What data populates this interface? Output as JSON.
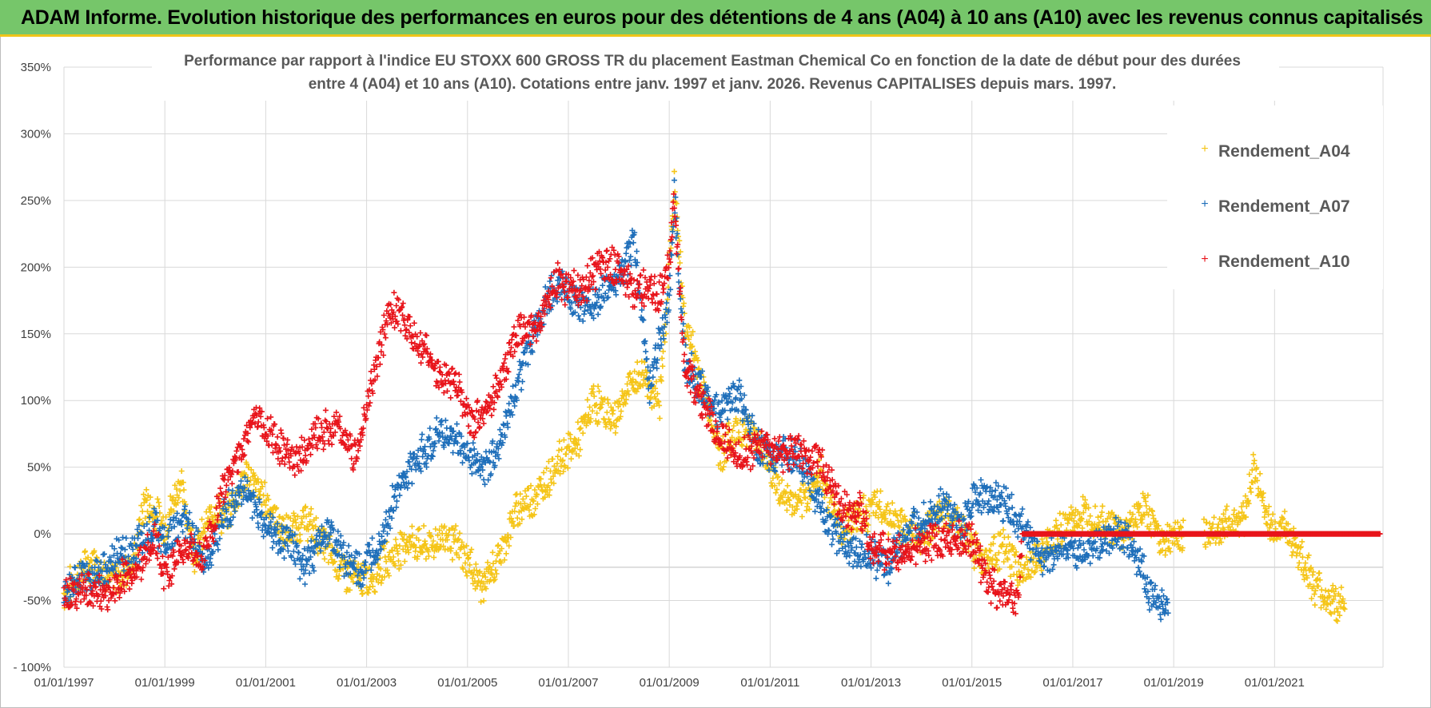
{
  "header": {
    "title": "ADAM Informe. Evolution historique des performances en euros pour des détentions de 4 ans (A04) à 10 ans (A10) avec les revenus connus capitalisés"
  },
  "colors": {
    "header_bg": "#76c66a",
    "header_border": "#f0c419",
    "A04": "#f5c518",
    "A07": "#1f6fba",
    "A10": "#e8141b",
    "grid": "#d9d9d9"
  },
  "chart_data": {
    "type": "scatter",
    "title_line1": "Performance par rapport à l'indice EU STOXX 600 GROSS TR  du placement Eastman Chemical Co en fonction de la date de début pour des durées",
    "title_line2": "entre 4 (A04) et 10 ans (A10). Cotations entre janv. 1997 et janv. 2026. Revenus CAPITALISES depuis mars. 1997.",
    "x_ticks": [
      "01/01/1997",
      "01/01/1999",
      "01/01/2001",
      "01/01/2003",
      "01/01/2005",
      "01/01/2007",
      "01/01/2009",
      "01/01/2011",
      "01/01/2013",
      "01/01/2015",
      "01/01/2017",
      "01/01/2019",
      "01/01/2021"
    ],
    "x_range": [
      1997.0,
      2023.15
    ],
    "y_ticks": [
      "350%",
      "300%",
      "250%",
      "200%",
      "150%",
      "100%",
      "50%",
      "0%",
      "-50%",
      "- 100%"
    ],
    "y_range": [
      -100,
      350
    ],
    "marker": "+",
    "legend": [
      "Rendement_A04",
      "Rendement_A07",
      "Rendement_A10"
    ],
    "series": [
      {
        "name": "Rendement_A04",
        "color": "#f5c518",
        "x": [
          1997.0,
          1997.3,
          1997.6,
          1998.0,
          1998.4,
          1998.6,
          1999.0,
          1999.3,
          1999.6,
          2000.0,
          2000.2,
          2000.6,
          2001.0,
          2001.4,
          2001.8,
          2002.2,
          2002.6,
          2003.0,
          2003.4,
          2003.8,
          2004.2,
          2004.6,
          2005.0,
          2005.3,
          2005.6,
          2006.0,
          2006.4,
          2006.8,
          2007.2,
          2007.5,
          2007.9,
          2008.2,
          2008.5,
          2008.8,
          2009.0,
          2009.1,
          2009.3,
          2009.6,
          2010.0,
          2010.4,
          2010.8,
          2011.2,
          2011.6,
          2012.0,
          2012.4,
          2012.8,
          2013.2,
          2013.6,
          2014.0,
          2014.4,
          2014.8,
          2015.2,
          2015.6,
          2016.0,
          2016.4,
          2016.8,
          2017.2,
          2017.6,
          2018.0,
          2018.4,
          2018.8,
          2019.2,
          2019.6,
          2020.0,
          2020.4,
          2020.6,
          2020.9,
          2021.2,
          2021.5,
          2021.8,
          2022.1,
          2022.4
        ],
        "y": [
          -45,
          -30,
          -20,
          -35,
          -20,
          25,
          5,
          40,
          -15,
          20,
          10,
          45,
          25,
          0,
          10,
          -10,
          -30,
          -35,
          -20,
          -5,
          -10,
          0,
          -20,
          -40,
          -20,
          20,
          30,
          55,
          70,
          100,
          85,
          110,
          120,
          95,
          200,
          260,
          160,
          120,
          60,
          80,
          70,
          30,
          20,
          45,
          5,
          15,
          20,
          5,
          0,
          15,
          5,
          -20,
          -10,
          -30,
          -15,
          5,
          15,
          10,
          0,
          20,
          -5,
          0,
          0,
          5,
          15,
          50,
          5,
          5,
          -15,
          -40,
          -50,
          -55
        ]
      },
      {
        "name": "Rendement_A07",
        "color": "#1f6fba",
        "x": [
          1997.0,
          1997.3,
          1997.6,
          1998.0,
          1998.4,
          1998.8,
          1999.0,
          1999.4,
          1999.8,
          2000.2,
          2000.6,
          2001.0,
          2001.4,
          2001.8,
          2002.2,
          2002.6,
          2002.9,
          2003.2,
          2003.6,
          2004.0,
          2004.4,
          2004.8,
          2005.1,
          2005.4,
          2005.7,
          2006.0,
          2006.4,
          2006.8,
          2007.2,
          2007.6,
          2008.0,
          2008.3,
          2008.6,
          2008.8,
          2009.0,
          2009.1,
          2009.3,
          2009.6,
          2010.0,
          2010.4,
          2010.8,
          2011.2,
          2011.6,
          2012.0,
          2012.4,
          2012.8,
          2013.0,
          2013.3,
          2013.6,
          2014.0,
          2014.4,
          2014.8,
          2015.1,
          2015.4,
          2015.7,
          2016.0,
          2016.4,
          2016.8,
          2017.2,
          2017.6,
          2018.0,
          2018.3,
          2018.6,
          2018.9
        ],
        "y": [
          -45,
          -35,
          -30,
          -20,
          -10,
          5,
          -5,
          10,
          -20,
          15,
          35,
          5,
          -5,
          -25,
          5,
          -20,
          -30,
          -10,
          30,
          55,
          75,
          70,
          55,
          50,
          75,
          115,
          160,
          190,
          170,
          175,
          190,
          220,
          110,
          145,
          175,
          255,
          130,
          110,
          90,
          105,
          60,
          60,
          55,
          20,
          -5,
          -15,
          -15,
          -25,
          -5,
          10,
          20,
          5,
          30,
          25,
          20,
          5,
          -20,
          -10,
          -15,
          -5,
          0,
          -20,
          -50,
          -55
        ]
      },
      {
        "name": "Rendement_A10",
        "color": "#e8141b",
        "x": [
          1997.0,
          1997.3,
          1997.6,
          1998.0,
          1998.4,
          1998.8,
          1999.0,
          1999.4,
          1999.8,
          2000.2,
          2000.5,
          2000.8,
          2001.2,
          2001.6,
          2002.0,
          2002.4,
          2002.8,
          2003.0,
          2003.2,
          2003.5,
          2003.8,
          2004.1,
          2004.4,
          2004.8,
          2005.1,
          2005.4,
          2005.7,
          2006.0,
          2006.4,
          2006.8,
          2007.2,
          2007.6,
          2008.0,
          2008.3,
          2008.6,
          2008.8,
          2009.0,
          2009.1,
          2009.3,
          2009.6,
          2010.0,
          2010.4,
          2010.8,
          2011.2,
          2011.6,
          2012.0,
          2012.4,
          2012.8,
          2013.0,
          2013.4,
          2013.8,
          2014.2,
          2014.6,
          2015.0,
          2015.3,
          2015.6,
          2015.9,
          2016.0,
          2016.5,
          2017.0,
          2017.5,
          2018.0,
          2018.5,
          2019.0,
          2019.5,
          2020.0,
          2020.5,
          2021.0,
          2021.5,
          2022.0,
          2022.5,
          2023.1
        ],
        "y": [
          -48,
          -42,
          -45,
          -40,
          -25,
          -5,
          -30,
          -10,
          -15,
          40,
          60,
          90,
          70,
          55,
          75,
          80,
          60,
          95,
          130,
          170,
          160,
          140,
          120,
          110,
          80,
          95,
          120,
          150,
          160,
          190,
          180,
          200,
          200,
          180,
          185,
          175,
          210,
          250,
          130,
          100,
          75,
          55,
          70,
          60,
          60,
          55,
          20,
          15,
          -10,
          -15,
          -10,
          -5,
          -5,
          -5,
          -35,
          -45,
          -50,
          0,
          0,
          0,
          0,
          0,
          0,
          0,
          0,
          0,
          0,
          0,
          0,
          0,
          0,
          0
        ]
      }
    ]
  }
}
